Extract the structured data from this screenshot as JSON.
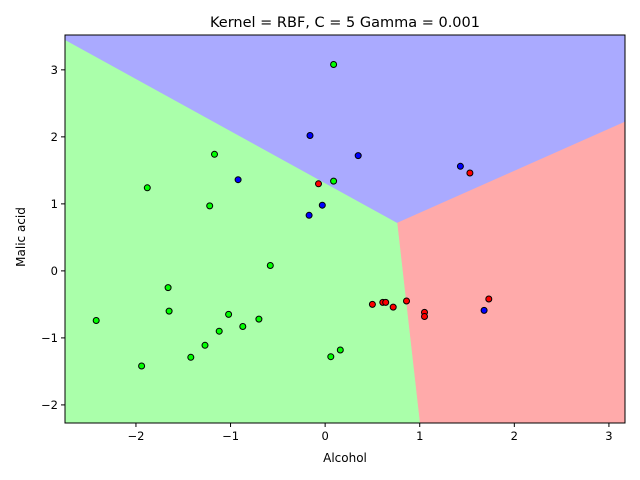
{
  "chart_data": {
    "type": "scatter",
    "title": "Kernel = RBF, C = 5 Gamma = 0.001",
    "xlabel": "Alcohol",
    "ylabel": "Malic acid",
    "xlim": [
      -2.75,
      3.17
    ],
    "ylim": [
      -2.27,
      3.52
    ],
    "grid": false,
    "legend": "none",
    "x_ticks": [
      -2,
      -1,
      0,
      1,
      2,
      3
    ],
    "y_ticks": [
      -2,
      -1,
      0,
      1,
      2,
      3
    ],
    "x_tick_labels": [
      "−2",
      "−1",
      "0",
      "1",
      "2",
      "3"
    ],
    "y_tick_labels": [
      "−2",
      "−1",
      "0",
      "1",
      "2",
      "3"
    ],
    "decision_regions": [
      {
        "class": "class_0",
        "color": "#ffaaaa",
        "polygon": [
          [
            0.76,
            0.72
          ],
          [
            3.17,
            2.23
          ],
          [
            3.17,
            -2.27
          ],
          [
            1.0,
            -2.27
          ]
        ]
      },
      {
        "class": "class_1",
        "color": "#aaffaa",
        "polygon": [
          [
            -2.75,
            3.45
          ],
          [
            0.76,
            0.72
          ],
          [
            1.0,
            -2.27
          ],
          [
            -2.75,
            -2.27
          ]
        ]
      },
      {
        "class": "class_2",
        "color": "#aaaaff",
        "polygon": [
          [
            -2.75,
            3.52
          ],
          [
            3.17,
            3.52
          ],
          [
            3.17,
            2.23
          ],
          [
            0.76,
            0.72
          ],
          [
            -2.75,
            3.45
          ]
        ]
      }
    ],
    "series": [
      {
        "color": "#ff0000",
        "points": [
          [
            -0.07,
            1.3
          ],
          [
            0.5,
            -0.5
          ],
          [
            0.61,
            -0.47
          ],
          [
            0.64,
            -0.47
          ],
          [
            0.72,
            -0.54
          ],
          [
            0.86,
            -0.45
          ],
          [
            1.05,
            -0.62
          ],
          [
            1.05,
            -0.68
          ],
          [
            1.53,
            1.46
          ],
          [
            1.73,
            -0.42
          ]
        ]
      },
      {
        "color": "#00ff00",
        "points": [
          [
            -2.42,
            -0.74
          ],
          [
            -1.94,
            -1.42
          ],
          [
            -1.88,
            1.24
          ],
          [
            -1.66,
            -0.25
          ],
          [
            -1.65,
            -0.6
          ],
          [
            -1.42,
            -1.29
          ],
          [
            -1.27,
            -1.11
          ],
          [
            -1.22,
            0.97
          ],
          [
            -1.17,
            1.74
          ],
          [
            -1.12,
            -0.9
          ],
          [
            -1.02,
            -0.65
          ],
          [
            -0.87,
            -0.83
          ],
          [
            -0.7,
            -0.72
          ],
          [
            -0.58,
            0.08
          ],
          [
            0.06,
            -1.28
          ],
          [
            0.09,
            3.08
          ],
          [
            0.09,
            1.34
          ],
          [
            0.16,
            -1.18
          ]
        ]
      },
      {
        "color": "#0000ff",
        "points": [
          [
            -0.92,
            1.36
          ],
          [
            -0.16,
            2.02
          ],
          [
            -0.17,
            0.83
          ],
          [
            -0.03,
            0.98
          ],
          [
            0.35,
            1.72
          ],
          [
            1.43,
            1.56
          ],
          [
            1.68,
            -0.59
          ]
        ]
      }
    ]
  }
}
